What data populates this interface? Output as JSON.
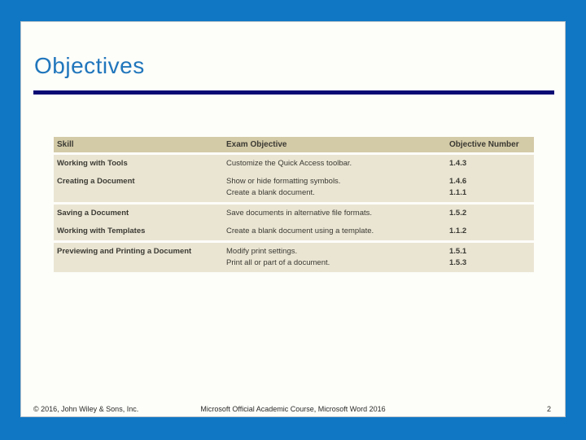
{
  "slide": {
    "title": "Objectives"
  },
  "table": {
    "headers": [
      "Skill",
      "Exam Objective",
      "Objective Number"
    ],
    "rows": [
      {
        "skill": "Working with Tools",
        "objectives": [
          "Customize the Quick Access toolbar."
        ],
        "numbers": [
          "1.4.3"
        ]
      },
      {
        "skill": "Creating a Document",
        "objectives": [
          "Show or hide formatting symbols.",
          "Create a blank document."
        ],
        "numbers": [
          "1.4.6",
          "1.1.1"
        ]
      },
      {
        "skill": "Saving a Document",
        "objectives": [
          "Save documents in alternative file formats."
        ],
        "numbers": [
          "1.5.2"
        ]
      },
      {
        "skill": "Working with Templates",
        "objectives": [
          "Create a blank document using a template."
        ],
        "numbers": [
          "1.1.2"
        ]
      },
      {
        "skill": "Previewing and Printing a Document",
        "objectives": [
          "Modify print settings.",
          "Print all or part of a document."
        ],
        "numbers": [
          "1.5.1",
          "1.5.3"
        ]
      }
    ]
  },
  "footer": {
    "copyright": "© 2016, John Wiley & Sons, Inc.",
    "course": "Microsoft Official Academic Course, Microsoft Word 2016",
    "page": "2"
  },
  "colors": {
    "frame_blue": "#1077c4",
    "panel_white": "#fdfdf9",
    "title_blue": "#2076bc",
    "rule_navy": "#0b0b75",
    "table_header_tan": "#d3caa7",
    "table_row_beige": "#eae5d3",
    "table_text": "#3b3a33"
  }
}
